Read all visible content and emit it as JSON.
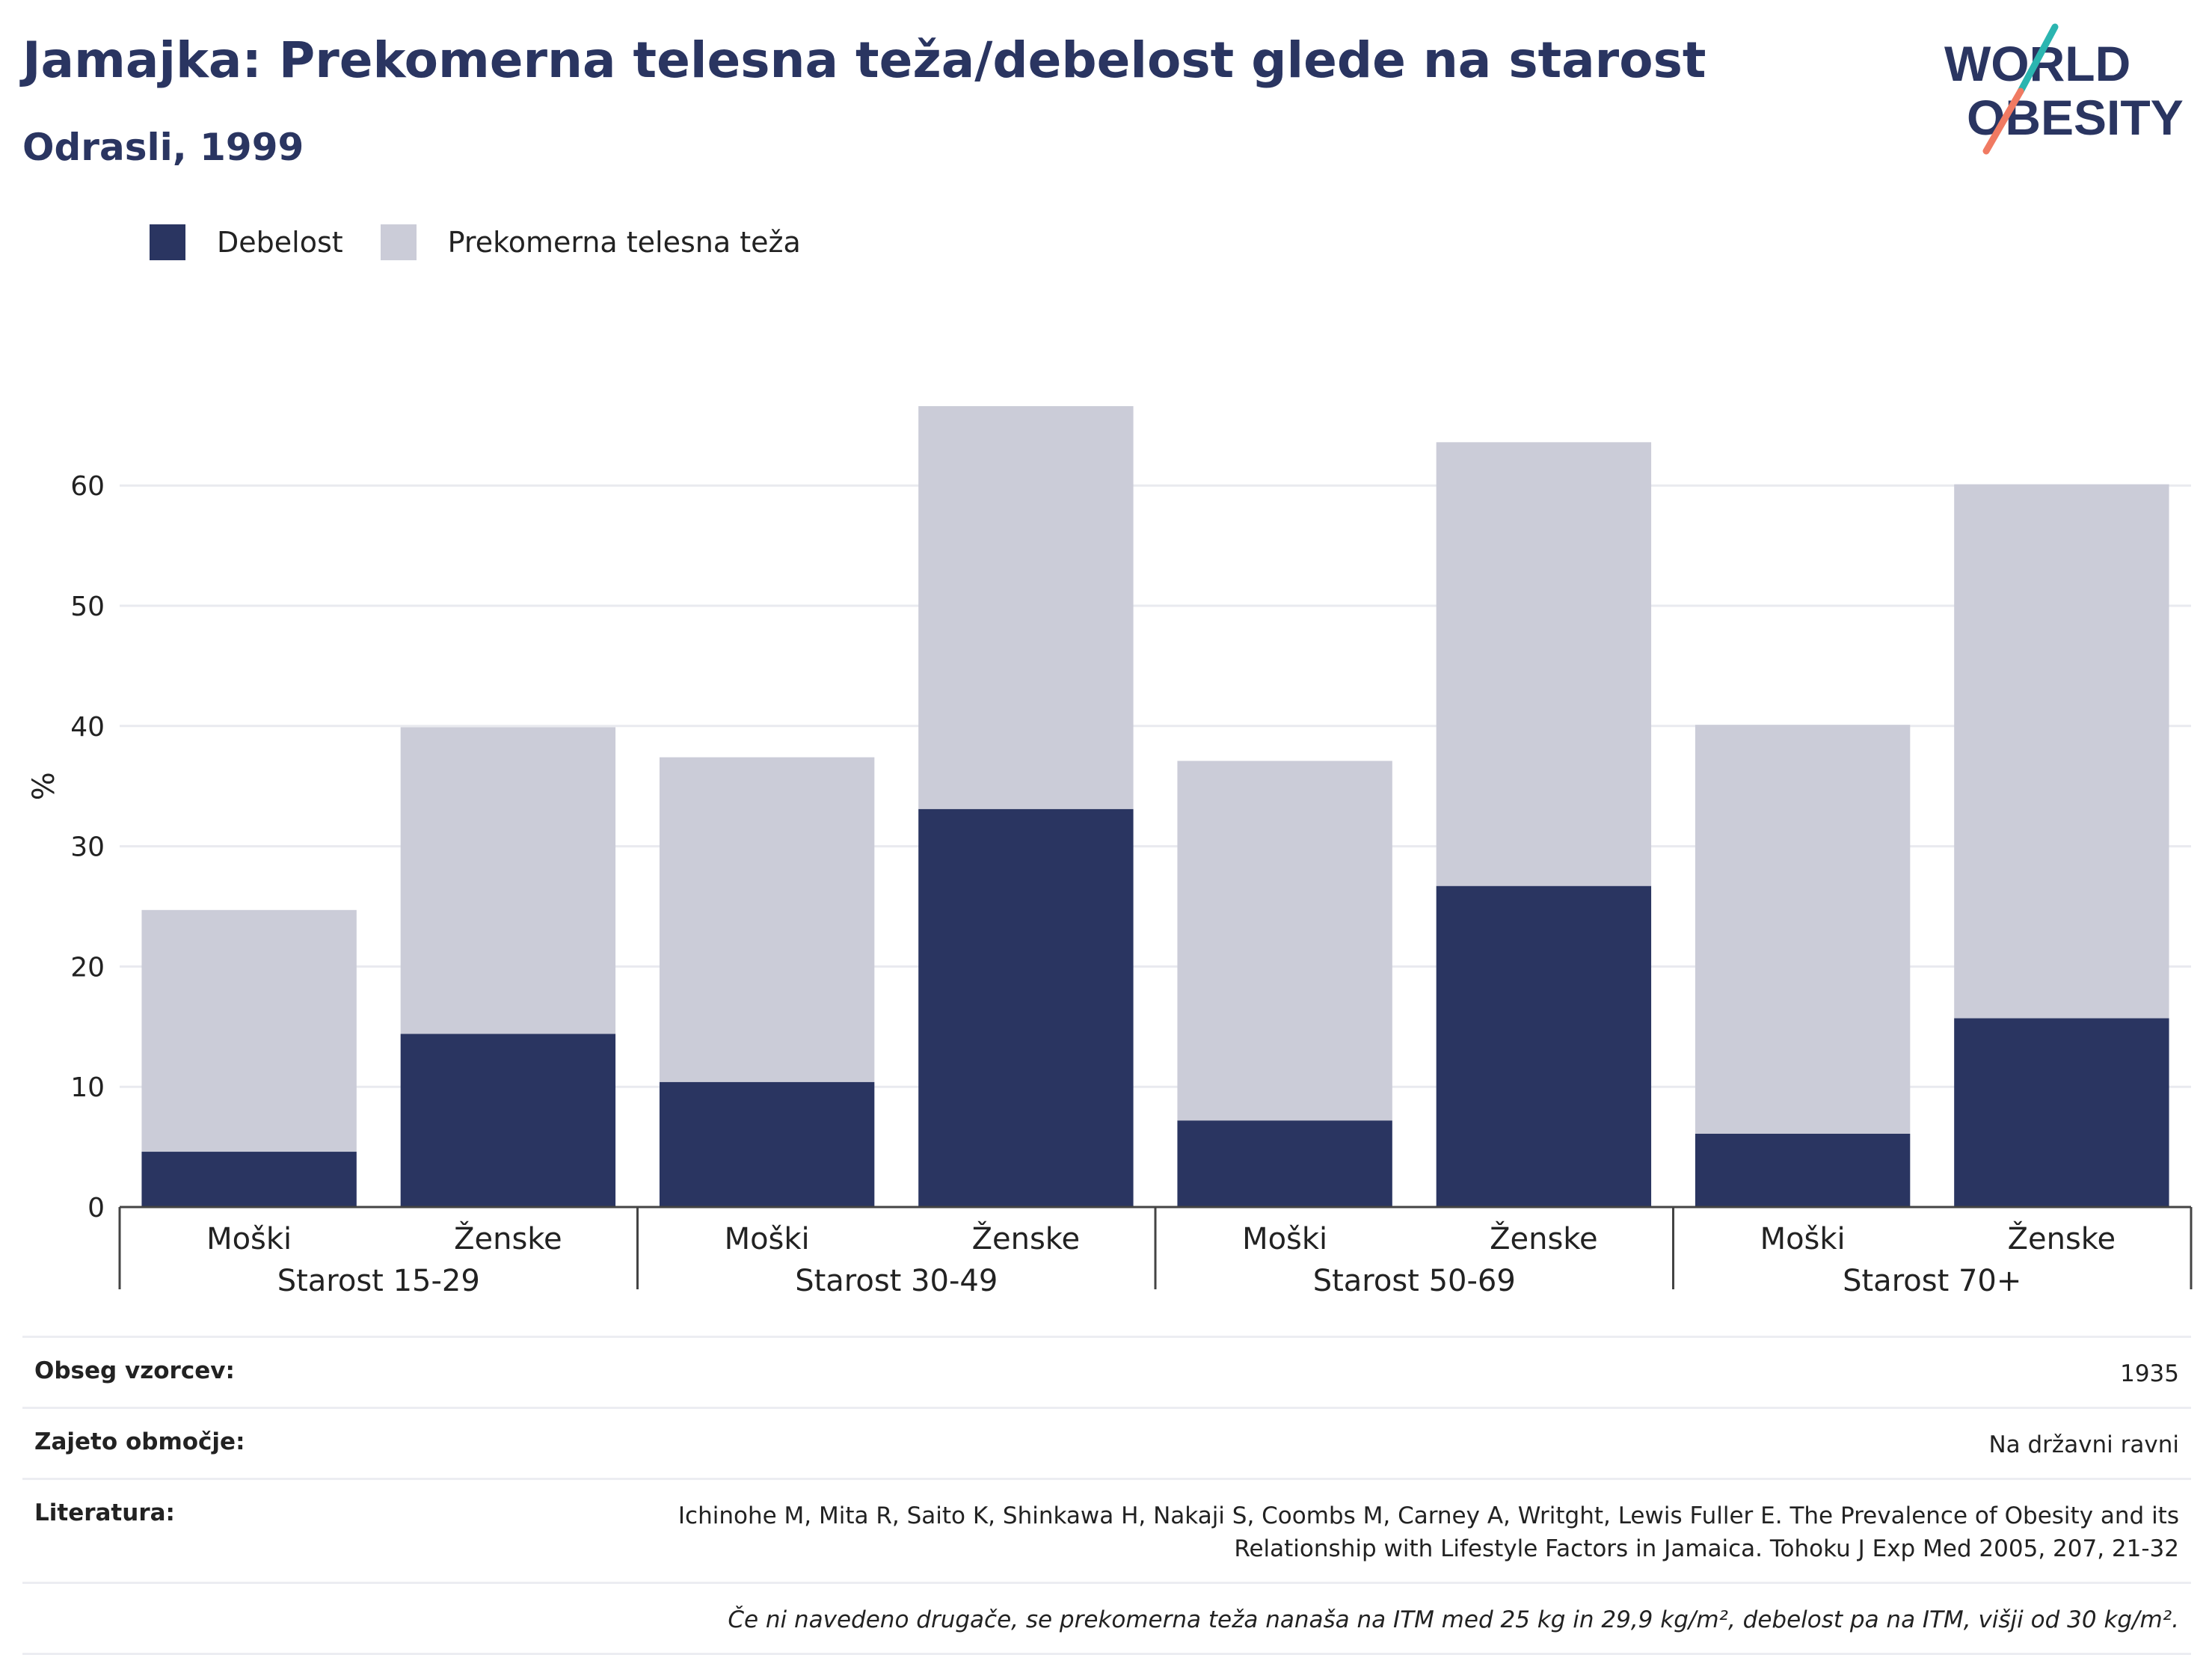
{
  "header": {
    "title": "Jamajka: Prekomerna telesna teža/debelost glede na starost",
    "subtitle": "Odrasli, 1999"
  },
  "logo": {
    "line1": "WORLD",
    "line2": "OBESITY",
    "colors": {
      "text": "#2a3561",
      "slash_top": "#2bb5b0",
      "slash_bottom": "#f07a62"
    }
  },
  "colors": {
    "obesity": "#2a3561",
    "overweight": "#cbccd8",
    "grid": "#e9eaef",
    "axis": "#444444",
    "title": "#2a3561"
  },
  "legend": [
    {
      "label": "Debelost",
      "color": "#2a3561"
    },
    {
      "label": "Prekomerna telesna teža",
      "color": "#cbccd8"
    }
  ],
  "chart_data": {
    "type": "bar",
    "stacked": true,
    "ylabel": "%",
    "ylim": [
      0,
      70
    ],
    "yticks": [
      0,
      10,
      20,
      30,
      40,
      50,
      60
    ],
    "grid": true,
    "legend_position": "top-left",
    "groups": [
      "Starost 15-29",
      "Starost 30-49",
      "Starost 50-69",
      "Starost 70+"
    ],
    "categories": [
      "Moški",
      "Ženske",
      "Moški",
      "Ženske",
      "Moški",
      "Ženske",
      "Moški",
      "Ženske"
    ],
    "series": [
      {
        "name": "Debelost",
        "values": [
          4.6,
          14.4,
          10.4,
          33.1,
          7.2,
          26.7,
          6.1,
          15.7
        ]
      },
      {
        "name": "Prekomerna telesna teža",
        "values": [
          20.1,
          25.5,
          27.0,
          33.5,
          29.9,
          36.9,
          34.0,
          44.4
        ]
      }
    ]
  },
  "info": {
    "sample_label": "Obseg vzorcev:",
    "sample_value": "1935",
    "coverage_label": "Zajeto območje:",
    "coverage_value": "Na državni ravni",
    "references_label": "Literatura:",
    "references_line1": "Ichinohe M, Mita R, Saito K, Shinkawa H, Nakaji S, Coombs M, Carney A, Writght, Lewis Fuller E. The Prevalence of Obesity and its",
    "references_line2": "Relationship with Lifestyle Factors in Jamaica. Tohoku J Exp Med 2005, 207, 21-32",
    "note": "Če ni navedeno drugače, se prekomerna teža nanaša na ITM med 25 kg in 29,9 kg/m², debelost pa na ITM, višji od 30 kg/m²."
  }
}
